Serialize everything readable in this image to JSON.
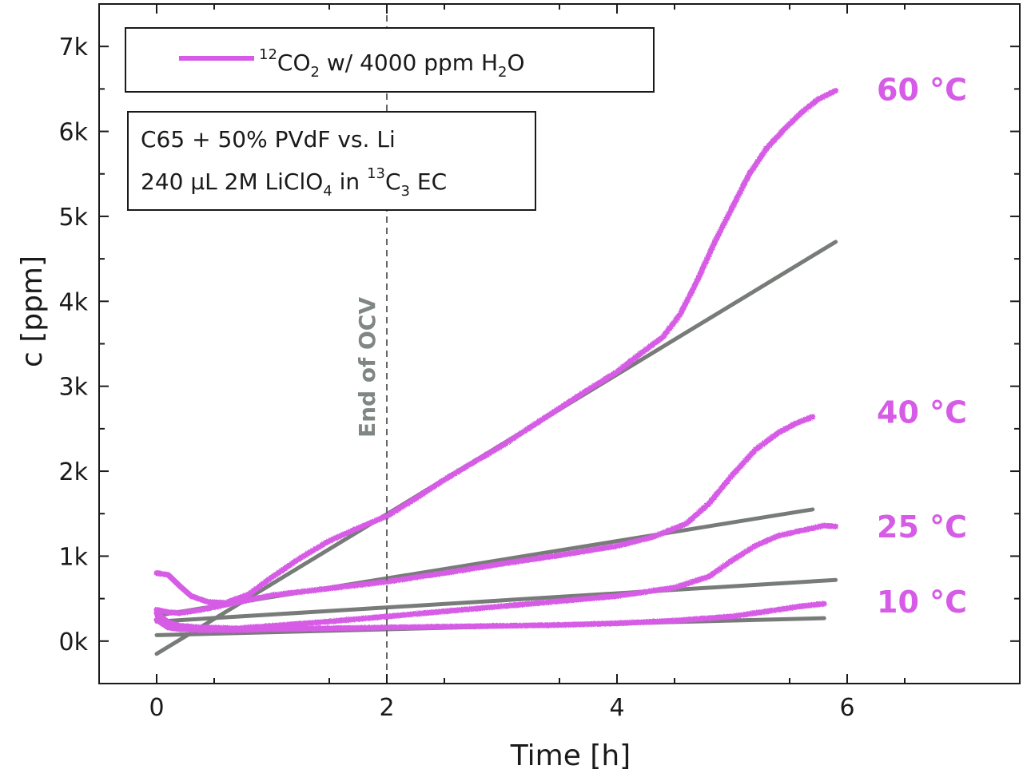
{
  "colors": {
    "measured": "#d65be6",
    "fit": "#787c79",
    "axis": "#1a1a1a",
    "ocv_line": "#666666"
  },
  "chart_data": {
    "type": "line",
    "xlabel": "Time [h]",
    "ylabel": "c [ppm]",
    "xlim": [
      -0.5,
      7.5
    ],
    "ylim": [
      -500,
      7500
    ],
    "xticks": [
      0,
      2,
      4,
      6
    ],
    "xtick_labels": [
      "0",
      "2",
      "4",
      "6"
    ],
    "yticks": [
      0,
      1000,
      2000,
      3000,
      4000,
      5000,
      6000,
      7000
    ],
    "ytick_labels": [
      "0k",
      "1k",
      "2k",
      "3k",
      "4k",
      "5k",
      "6k",
      "7k"
    ],
    "legend": {
      "location": "top-left",
      "text": "12CO2 w/ 4000 ppm H2O",
      "parts": {
        "sup1": "12",
        "t1": "CO",
        "sub1": "2",
        "t2": " w/ 4000 ppm H",
        "sub2": "2",
        "t3": "O"
      }
    },
    "info_box": {
      "line1": "C65 + 50% PVdF vs. Li",
      "line2_parts": {
        "t1": "240 µL 2M LiClO",
        "sub1": "4",
        "t2": " in ",
        "sup1": "13",
        "t3": "C",
        "sub2": "3",
        "t4": " EC"
      }
    },
    "annotation": {
      "text": "End of OCV",
      "x": 2
    },
    "series": [
      {
        "name": "60 °C",
        "label": "60 °C",
        "x": [
          0,
          0.1,
          0.2,
          0.3,
          0.45,
          0.6,
          0.8,
          1.0,
          1.25,
          1.5,
          1.75,
          2.0,
          2.25,
          2.5,
          2.75,
          3.0,
          3.25,
          3.5,
          3.75,
          4.0,
          4.2,
          4.4,
          4.55,
          4.7,
          4.85,
          5.0,
          5.15,
          5.3,
          5.45,
          5.6,
          5.75,
          5.9
        ],
        "values": [
          800,
          780,
          650,
          530,
          460,
          450,
          550,
          750,
          980,
          1180,
          1330,
          1470,
          1680,
          1900,
          2100,
          2300,
          2520,
          2740,
          2960,
          3170,
          3380,
          3580,
          3850,
          4250,
          4700,
          5100,
          5500,
          5800,
          6020,
          6220,
          6380,
          6480
        ],
        "fit_x": [
          0,
          5.9
        ],
        "fit_values": [
          -150,
          4700
        ]
      },
      {
        "name": "40 °C",
        "label": "40 °C",
        "x": [
          0,
          0.1,
          0.2,
          0.35,
          0.5,
          0.75,
          1.0,
          1.5,
          2.0,
          2.5,
          3.0,
          3.5,
          4.0,
          4.3,
          4.6,
          4.8,
          5.0,
          5.2,
          5.4,
          5.55,
          5.7
        ],
        "values": [
          370,
          340,
          330,
          360,
          400,
          470,
          540,
          620,
          700,
          800,
          910,
          1010,
          1120,
          1220,
          1380,
          1620,
          1950,
          2250,
          2450,
          2560,
          2640
        ],
        "fit_x": [
          0,
          5.7
        ],
        "fit_values": [
          300,
          1550
        ]
      },
      {
        "name": "25 °C",
        "label": "25 °C",
        "x": [
          0,
          0.1,
          0.2,
          0.4,
          0.7,
          1.0,
          1.5,
          2.0,
          2.5,
          3.0,
          3.5,
          4.0,
          4.5,
          4.8,
          5.0,
          5.2,
          5.4,
          5.6,
          5.8,
          5.9
        ],
        "values": [
          330,
          220,
          180,
          160,
          150,
          180,
          230,
          290,
          350,
          410,
          470,
          530,
          630,
          760,
          950,
          1120,
          1240,
          1300,
          1360,
          1350
        ],
        "fit_x": [
          0,
          5.9
        ],
        "fit_values": [
          230,
          720
        ]
      },
      {
        "name": "10 °C",
        "label": "10 °C",
        "x": [
          0,
          0.1,
          0.2,
          0.4,
          0.7,
          1.0,
          1.5,
          2.0,
          2.5,
          3.0,
          3.5,
          4.0,
          4.5,
          5.0,
          5.3,
          5.6,
          5.8
        ],
        "values": [
          250,
          160,
          140,
          130,
          130,
          140,
          150,
          160,
          170,
          180,
          190,
          210,
          240,
          290,
          350,
          410,
          440
        ],
        "fit_x": [
          0,
          5.8
        ],
        "fit_values": [
          70,
          270
        ]
      }
    ]
  }
}
